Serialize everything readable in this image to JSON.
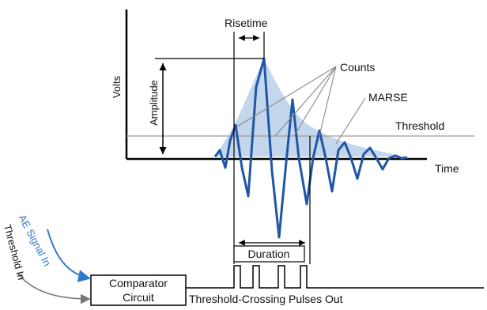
{
  "labels": {
    "volts": "Volts",
    "time": "Time",
    "amplitude": "Amplitude",
    "risetime": "Risetime",
    "counts": "Counts",
    "marse": "MARSE",
    "threshold": "Threshold",
    "duration": "Duration",
    "comparator_line1": "Comparator",
    "comparator_line2": "Circuit",
    "pulses_out": "Threshold-Crossing Pulses Out",
    "ae_signal_in": "AE Signal In",
    "threshold_in": "Threshold In"
  },
  "colors": {
    "waveform": "#1f56a6",
    "envelope_fill": "#b9cfe8",
    "threshold_line": "#9a9a9a",
    "axis": "#000000",
    "ae_arrow": "#2f7ac9",
    "threshold_arrow": "#777777"
  }
}
